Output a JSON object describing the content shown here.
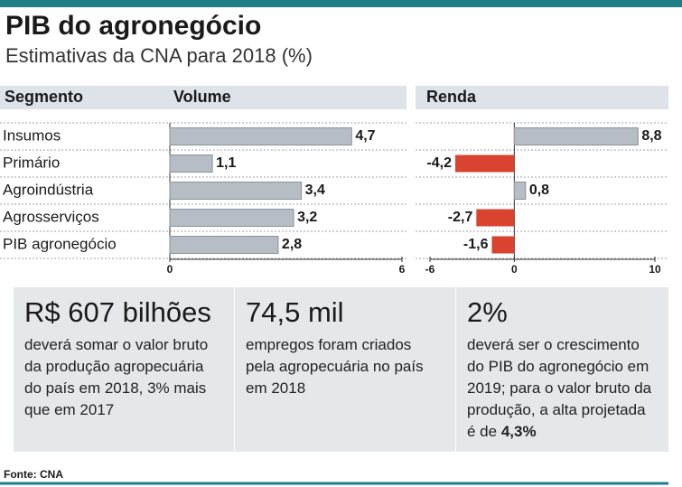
{
  "title": "PIB do agronegócio",
  "subtitle": "Estimativas da CNA para 2018 (%)",
  "chart_data": {
    "type": "bar",
    "orientation": "horizontal",
    "category_label": "Segmento",
    "categories": [
      "Insumos",
      "Primário",
      "Agroindústria",
      "Agrosserviços",
      "PIB agronegócio"
    ],
    "series": [
      {
        "name": "Volume",
        "color": "#b6bdc4",
        "negative_color": "#d9432f",
        "values": [
          4.7,
          1.1,
          3.4,
          3.2,
          2.8
        ],
        "value_labels": [
          "4,7",
          "1,1",
          "3,4",
          "3,2",
          "2,8"
        ],
        "xlim": [
          0,
          6
        ],
        "xticks": [
          0,
          6
        ]
      },
      {
        "name": "Renda",
        "color": "#b6bdc4",
        "negative_color": "#d9432f",
        "values": [
          8.8,
          -4.2,
          0.8,
          -2.7,
          -1.6
        ],
        "value_labels": [
          "8,8",
          "-4,2",
          "0,8",
          "-2,7",
          "-1,6"
        ],
        "xlim": [
          -6,
          10
        ],
        "xticks": [
          -6,
          0,
          10
        ]
      }
    ]
  },
  "stats": [
    {
      "value": "R$ 607 bilhões",
      "text": "deverá somar o valor bruto da produção agropecuária do país em 2018, 3% mais que em 2017"
    },
    {
      "value": "74,5 mil",
      "text": "empregos foram criados pela agropecuária no país em 2018"
    },
    {
      "value": "2%",
      "text": "deverá ser o crescimento do PIB do agronegócio em 2019; para o valor bruto da produção, a alta projetada é de",
      "highlight": "4,3%"
    }
  ],
  "source": "Fonte: CNA"
}
